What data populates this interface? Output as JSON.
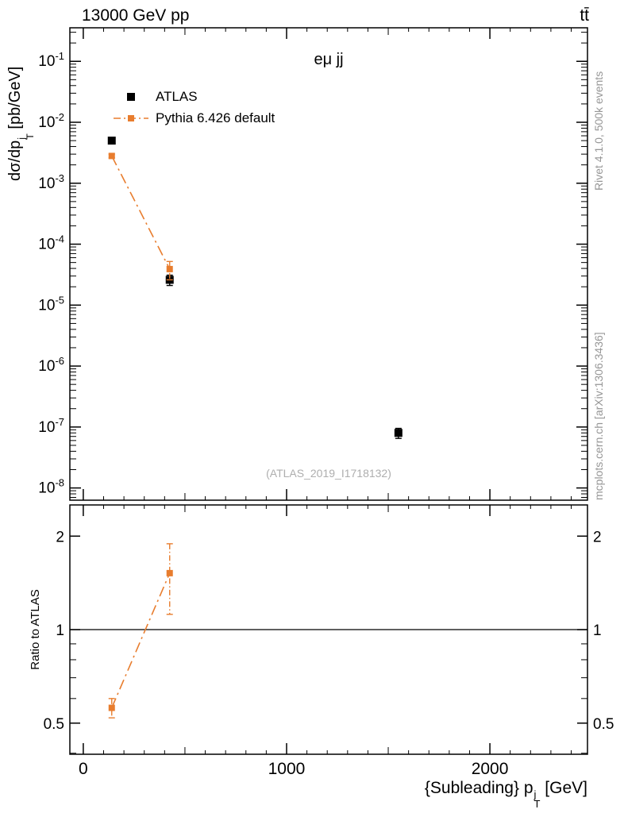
{
  "header": {
    "title_left": "13000 GeV pp",
    "title_right": "tt̄"
  },
  "margin_text": {
    "right_top": "Rivet 4.1.0,  500k events",
    "right_bottom": "mcplots.cern.ch [arXiv:1306.3436]",
    "color": "#969696"
  },
  "labels": {
    "main_y_prefix": "dσ/dp",
    "main_y_sup": "j",
    "main_y_sub": "T",
    "main_y_suffix": " [pb/GeV]",
    "ratio_y": "Ratio to ATLAS",
    "x_prefix": "{Subleading} p",
    "x_sup": "j",
    "x_sub": "T",
    "x_suffix": " [GeV]"
  },
  "main_panel": {
    "annotation": "eμ jj",
    "watermark": "(ATLAS_2019_I1718132)",
    "legend": [
      {
        "label": "ATLAS",
        "marker_color": "#000000",
        "line": "none",
        "marker_size": 10
      },
      {
        "label": "Pythia 6.426 default",
        "marker_color": "#e87d2e",
        "line": "dashdot",
        "marker_size": 8
      }
    ]
  },
  "chart_data": [
    {
      "type": "scatter",
      "panel": "main",
      "title": "eμ jj",
      "xlabel": "{Subleading} pT^j [GeV]",
      "ylabel": "dσ/dpT^j [pb/GeV]",
      "xscale": "linear",
      "yscale": "log",
      "xlim": [
        -66,
        2480
      ],
      "ylim": [
        6.3e-09,
        0.355
      ],
      "x_major_ticks": [
        0,
        1000,
        2000
      ],
      "x_minor_step": 100,
      "y_major_ticks_exponents": [
        -8,
        -7,
        -6,
        -5,
        -4,
        -3,
        -2,
        -1
      ],
      "grid": false,
      "legend_position": "top-left",
      "series": [
        {
          "name": "ATLAS",
          "color": "#000000",
          "marker": "square",
          "marker_size": 10,
          "linestyle": "none",
          "x": [
            140,
            425,
            1550
          ],
          "y": [
            0.005,
            2.6e-05,
            8e-08
          ],
          "yerr_lo": [
            0.0005,
            5e-06,
            1.5e-08
          ],
          "yerr_hi": [
            0.0005,
            5e-06,
            1.5e-08
          ]
        },
        {
          "name": "Pythia 6.426 default",
          "color": "#e87d2e",
          "marker": "square",
          "marker_size": 8,
          "linestyle": "dashdot",
          "x": [
            140,
            425
          ],
          "y": [
            0.0028,
            3.9e-05
          ],
          "yerr_lo": [
            0.0002,
            1.3e-05
          ],
          "yerr_hi": [
            0.0002,
            1.3e-05
          ]
        }
      ]
    },
    {
      "type": "scatter",
      "panel": "ratio",
      "title": "",
      "ylabel": "Ratio to ATLAS",
      "yscale": "log",
      "xlim": [
        -66,
        2480
      ],
      "ylim": [
        0.397,
        2.52
      ],
      "yticks": [
        0.5,
        1,
        2
      ],
      "ref_line": 1,
      "series": [
        {
          "name": "Pythia 6.426 default",
          "color": "#e87d2e",
          "marker": "square",
          "marker_size": 8,
          "linestyle": "dashdot",
          "x": [
            140,
            425
          ],
          "y": [
            0.56,
            1.52
          ],
          "yerr_lo": [
            0.04,
            0.4
          ],
          "yerr_hi": [
            0.04,
            0.37
          ]
        }
      ]
    }
  ]
}
